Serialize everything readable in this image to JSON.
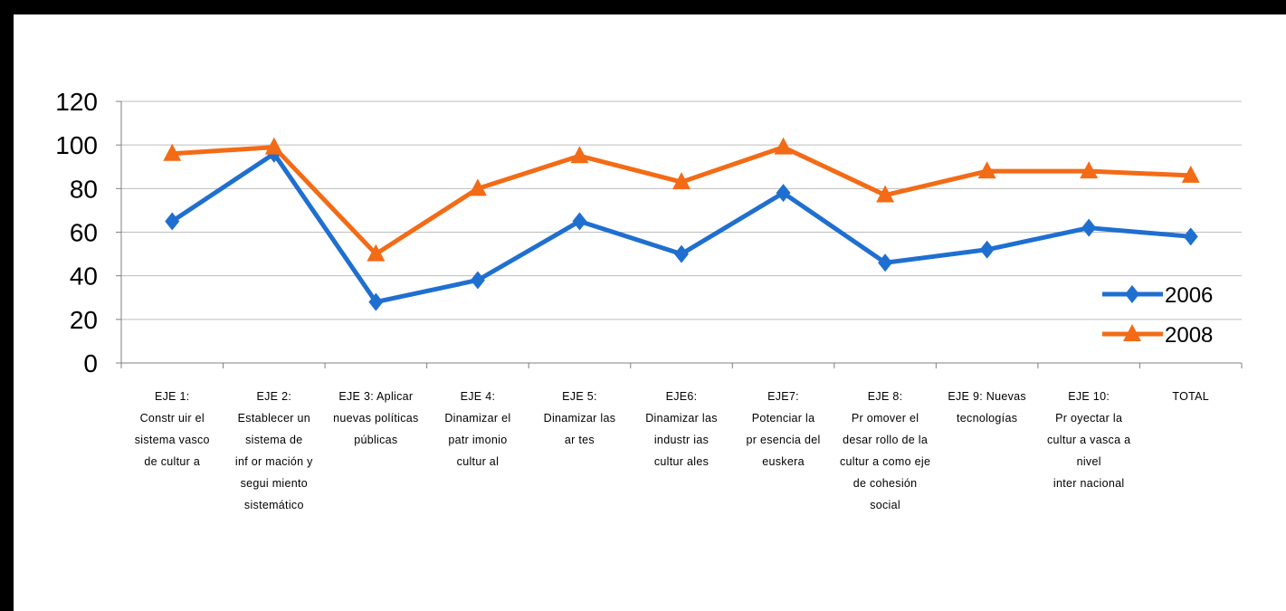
{
  "chart_data": {
    "type": "line",
    "title": "",
    "xlabel": "",
    "ylabel": "",
    "ylim": [
      0,
      120
    ],
    "yticks": [
      "0",
      "20",
      "40",
      "60",
      "80",
      "100",
      "120"
    ],
    "grid": "horizontal",
    "legend_position": "right",
    "categories": [
      [
        "EJE 1:",
        "Constr uir el",
        "sistema vasco",
        "de cultur a"
      ],
      [
        "EJE 2:",
        "Establecer un",
        "sistema de",
        "inf or mación y",
        "segui miento",
        "sistemático"
      ],
      [
        "EJE 3: Aplicar",
        "nuevas políticas",
        "públicas"
      ],
      [
        "EJE 4:",
        "Dinamizar el",
        "patr imonio",
        "cultur al"
      ],
      [
        "EJE 5:",
        "Dinamizar las",
        "ar tes"
      ],
      [
        "EJE6:",
        "Dinamizar las",
        "industr ias",
        "cultur ales"
      ],
      [
        "EJE7:",
        "Potenciar la",
        "pr esencia del",
        "euskera"
      ],
      [
        "EJE 8:",
        "Pr omover el",
        "desar rollo de la",
        "cultur a como eje",
        "de cohesión",
        "social"
      ],
      [
        "EJE 9: Nuevas",
        "tecnologías"
      ],
      [
        "EJE 10:",
        "Pr oyectar la",
        "cultur a vasca a",
        "nivel",
        "inter nacional"
      ],
      [
        "TOTAL"
      ]
    ],
    "series": [
      {
        "name": "2006",
        "color": "#1f6fd0",
        "marker": "diamond",
        "values": [
          65,
          96,
          28,
          38,
          65,
          50,
          78,
          46,
          52,
          62,
          58
        ]
      },
      {
        "name": "2008",
        "color": "#f36b16",
        "marker": "triangle",
        "values": [
          96,
          99,
          50,
          80,
          95,
          83,
          99,
          77,
          88,
          88,
          86
        ]
      }
    ]
  }
}
